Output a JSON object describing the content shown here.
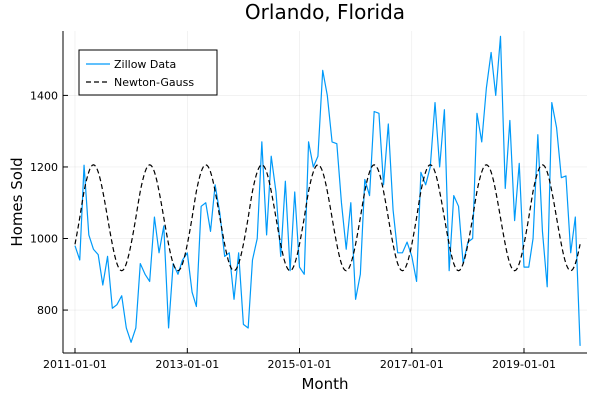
{
  "chart_data": {
    "type": "line",
    "title": "Orlando, Florida",
    "xlabel": "Month",
    "ylabel": "Homes Sold",
    "xlim": [
      "2010-10-15",
      "2020-02-15"
    ],
    "ylim": [
      680,
      1580
    ],
    "x_ticks": [
      "2011-01-01",
      "2013-01-01",
      "2015-01-01",
      "2017-01-01",
      "2019-01-01"
    ],
    "y_ticks": [
      800,
      1000,
      1200,
      1400
    ],
    "grid": true,
    "legend_position": "top-left",
    "x_start": "2011-01-01",
    "x_step": "1 month",
    "series": [
      {
        "name": "Zillow Data",
        "color": "#009af9",
        "style": "solid",
        "values": [
          980,
          940,
          1205,
          1010,
          970,
          955,
          870,
          950,
          805,
          815,
          840,
          750,
          710,
          750,
          930,
          900,
          880,
          1060,
          960,
          1035,
          750,
          930,
          900,
          940,
          960,
          850,
          810,
          1090,
          1100,
          1020,
          1150,
          1070,
          950,
          960,
          830,
          960,
          760,
          750,
          940,
          1000,
          1270,
          1010,
          1230,
          1130,
          950,
          1160,
          910,
          1130,
          920,
          900,
          1270,
          1200,
          1230,
          1470,
          1400,
          1270,
          1265,
          1100,
          970,
          1100,
          830,
          900,
          1165,
          1120,
          1355,
          1350,
          1150,
          1320,
          1080,
          960,
          960,
          990,
          950,
          880,
          1185,
          1150,
          1200,
          1380,
          1200,
          1360,
          910,
          1120,
          1090,
          930,
          990,
          1000,
          1350,
          1270,
          1420,
          1520,
          1400,
          1565,
          1140,
          1330,
          1050,
          1210,
          920,
          920,
          1000,
          1290,
          1020,
          865,
          1380,
          1310,
          1170,
          1175,
          960,
          1060,
          700
        ]
      },
      {
        "name": "Newton-Gauss",
        "color": "#000000",
        "style": "dashed",
        "model": {
          "baseline": 1058,
          "amplitude": 148,
          "period_months": 12,
          "peak_month_offset": 4
        }
      }
    ]
  }
}
